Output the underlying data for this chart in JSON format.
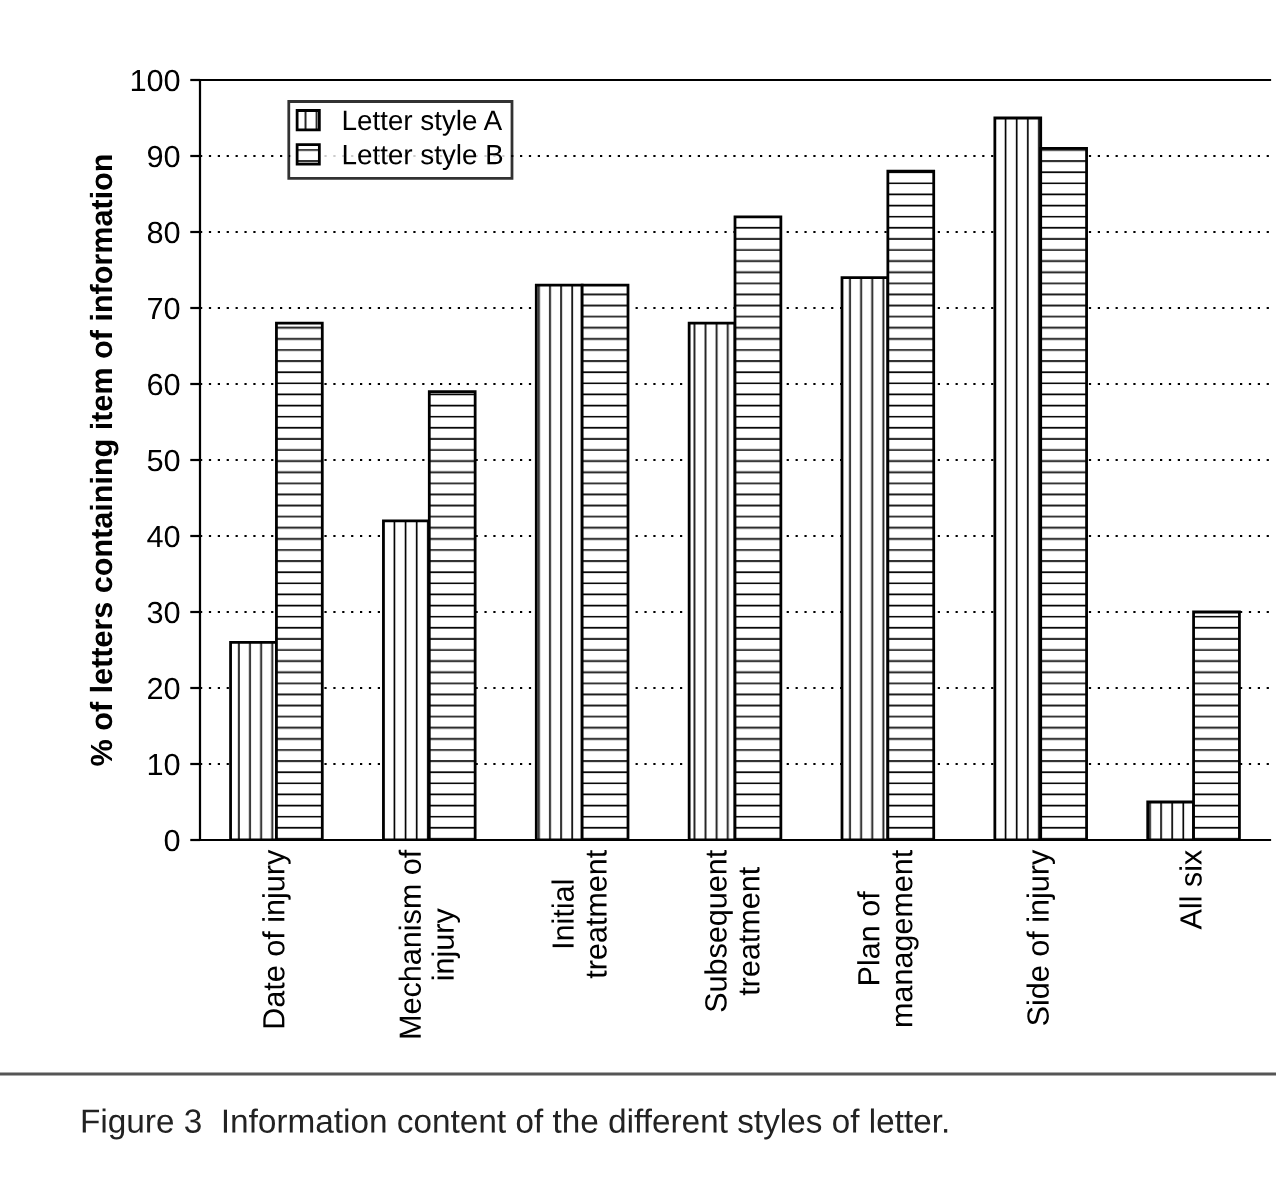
{
  "chart_data": {
    "type": "bar",
    "ylabel": "% of letters containing item of information",
    "categories": [
      "Date of injury",
      "Mechanism of\ninjury",
      "Initial\ntreatment",
      "Subsequent\ntreatment",
      "Plan of\nmanagement",
      "Side of injury",
      "All six"
    ],
    "series": [
      {
        "name": "Letter style A",
        "color": "#000000",
        "values": [
          26,
          42,
          73,
          68,
          74,
          95,
          5
        ]
      },
      {
        "name": "Letter style B",
        "color": "#000000",
        "values": [
          68,
          59,
          73,
          82,
          88,
          91,
          30
        ]
      }
    ],
    "ylim": [
      0,
      100
    ],
    "yticks": [
      0,
      10,
      20,
      30,
      40,
      50,
      60,
      70,
      80,
      90,
      100
    ],
    "grid": "y",
    "legend": "top left",
    "annotations": [
      "Figure 3  Information content of the different styles of letter."
    ]
  }
}
